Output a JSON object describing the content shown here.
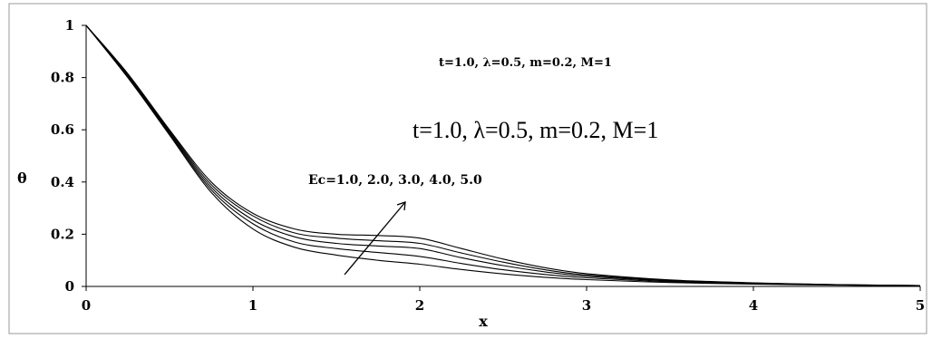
{
  "chart_data": {
    "type": "line",
    "xlabel": "x",
    "ylabel": "θ",
    "xlim": [
      0,
      5
    ],
    "ylim": [
      0,
      1
    ],
    "x_ticks": [
      "0",
      "1",
      "2",
      "3",
      "4",
      "5"
    ],
    "y_ticks": [
      "0",
      "0.2",
      "0.4",
      "0.6",
      "0.8",
      "1"
    ],
    "grid": false,
    "legend": "none",
    "line_color": "#000000",
    "annotations": {
      "params_small": "t=1.0, λ=0.5, m=0.2,  M=1",
      "params_large": "t=1.0, λ=0.5, m=0.2, M=1",
      "ec_label": "Ec=1.0, 2.0, 3.0, 4.0, 5.0"
    },
    "x": [
      0,
      0.25,
      0.5,
      0.75,
      1.0,
      1.25,
      1.5,
      1.75,
      2.0,
      2.25,
      2.5,
      2.75,
      3.0,
      3.5,
      4.0,
      4.5,
      5.0
    ],
    "series": [
      {
        "values": [
          1,
          0.8,
          0.58,
          0.36,
          0.22,
          0.15,
          0.12,
          0.1,
          0.085,
          0.065,
          0.048,
          0.035,
          0.026,
          0.015,
          0.009,
          0.005,
          0.003
        ]
      },
      {
        "values": [
          1,
          0.8,
          0.585,
          0.37,
          0.24,
          0.17,
          0.145,
          0.13,
          0.115,
          0.088,
          0.064,
          0.046,
          0.033,
          0.018,
          0.011,
          0.006,
          0.003
        ]
      },
      {
        "values": [
          1,
          0.805,
          0.59,
          0.38,
          0.255,
          0.19,
          0.165,
          0.155,
          0.145,
          0.11,
          0.08,
          0.056,
          0.039,
          0.021,
          0.012,
          0.006,
          0.003
        ]
      },
      {
        "values": [
          1,
          0.81,
          0.595,
          0.39,
          0.27,
          0.205,
          0.185,
          0.175,
          0.165,
          0.128,
          0.093,
          0.064,
          0.044,
          0.023,
          0.013,
          0.007,
          0.003
        ]
      },
      {
        "values": [
          1,
          0.815,
          0.6,
          0.4,
          0.28,
          0.22,
          0.2,
          0.195,
          0.185,
          0.145,
          0.105,
          0.072,
          0.049,
          0.025,
          0.014,
          0.007,
          0.003
        ]
      }
    ]
  }
}
